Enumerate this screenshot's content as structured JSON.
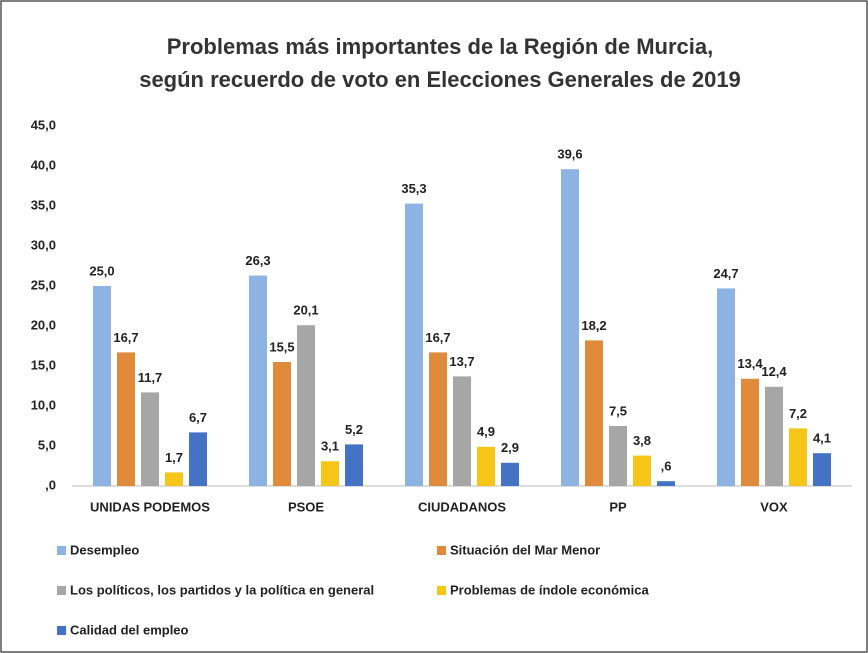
{
  "chart_data": {
    "type": "bar",
    "title": [
      "Problemas más importantes de la Región de Murcia,",
      "según recuerdo de voto en Elecciones Generales de 2019"
    ],
    "categories": [
      "UNIDAS PODEMOS",
      "PSOE",
      "CIUDADANOS",
      "PP",
      "VOX"
    ],
    "series": [
      {
        "name": "Desempleo",
        "color": "#8db3e2",
        "values": [
          25.0,
          26.3,
          35.3,
          39.6,
          24.7
        ],
        "value_labels": [
          "25,0",
          "26,3",
          "35,3",
          "39,6",
          "24,7"
        ]
      },
      {
        "name": "Situación del Mar Menor",
        "color": "#e08a3c",
        "values": [
          16.7,
          15.5,
          16.7,
          18.2,
          13.4
        ],
        "value_labels": [
          "16,7",
          "15,5",
          "16,7",
          "18,2",
          "13,4"
        ]
      },
      {
        "name": "Los políticos, los partidos y la política en general",
        "color": "#a6a6a6",
        "values": [
          11.7,
          20.1,
          13.7,
          7.5,
          12.4
        ],
        "value_labels": [
          "11,7",
          "20,1",
          "13,7",
          "7,5",
          "12,4"
        ]
      },
      {
        "name": "Problemas de índole económica",
        "color": "#f5c518",
        "values": [
          1.7,
          3.1,
          4.9,
          3.8,
          7.2
        ],
        "value_labels": [
          "1,7",
          "3,1",
          "4,9",
          "3,8",
          "7,2"
        ]
      },
      {
        "name": "Calidad del empleo",
        "color": "#4472c4",
        "values": [
          6.7,
          5.2,
          2.9,
          0.6,
          4.1
        ],
        "value_labels": [
          "6,7",
          "5,2",
          "2,9",
          ",6",
          "4,1"
        ]
      }
    ],
    "ylim": [
      0,
      45
    ],
    "yticks": [
      {
        "value": 0,
        "label": ",0"
      },
      {
        "value": 5,
        "label": "5,0"
      },
      {
        "value": 10,
        "label": "10,0"
      },
      {
        "value": 15,
        "label": "15,0"
      },
      {
        "value": 20,
        "label": "20,0"
      },
      {
        "value": 25,
        "label": "25,0"
      },
      {
        "value": 30,
        "label": "30,0"
      },
      {
        "value": 35,
        "label": "35,0"
      },
      {
        "value": 40,
        "label": "40,0"
      },
      {
        "value": 45,
        "label": "45,0"
      }
    ],
    "grid": false
  }
}
